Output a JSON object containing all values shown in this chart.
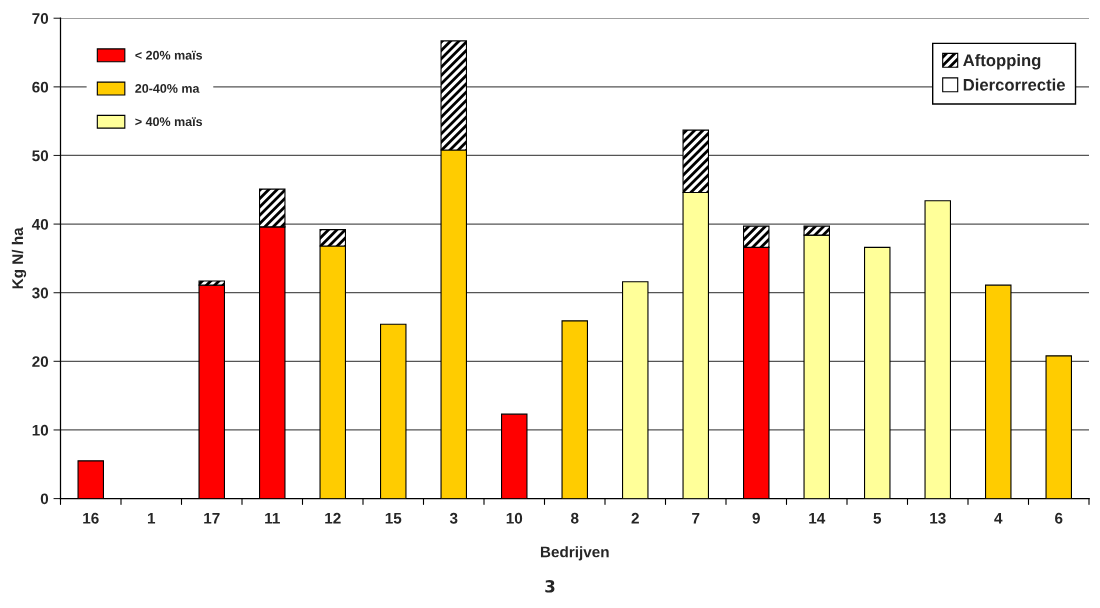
{
  "chart_data": {
    "type": "bar",
    "stacked": true,
    "categories": [
      "16",
      "1",
      "17",
      "11",
      "12",
      "15",
      "3",
      "10",
      "8",
      "2",
      "7",
      "9",
      "14",
      "5",
      "13",
      "4",
      "6"
    ],
    "series": [
      {
        "name": "> 40% maïs",
        "color": "#ffff99",
        "values": [
          null,
          null,
          null,
          null,
          null,
          null,
          null,
          null,
          null,
          31.6,
          44.6,
          null,
          38.4,
          36.6,
          43.4,
          null,
          null
        ]
      },
      {
        "name": "20-40% ma",
        "color": "#ffcc00",
        "values": [
          null,
          null,
          null,
          null,
          36.8,
          25.4,
          50.8,
          null,
          25.9,
          null,
          null,
          null,
          null,
          null,
          null,
          31.1,
          20.8
        ]
      },
      {
        "name": "< 20% maïs",
        "color": "#ff0000",
        "values": [
          5.5,
          null,
          31.1,
          39.6,
          null,
          null,
          null,
          12.3,
          null,
          null,
          null,
          36.6,
          null,
          null,
          null,
          null,
          null
        ]
      },
      {
        "name": "Diercorrectie",
        "color": "#ffffff",
        "values": [
          0,
          0,
          0,
          0,
          0,
          0,
          0,
          0,
          0,
          0,
          0,
          0,
          0,
          0,
          0,
          0,
          0
        ]
      },
      {
        "name": "Aftopping",
        "color": "#000000",
        "values": [
          null,
          null,
          0.6,
          5.5,
          2.4,
          null,
          15.9,
          null,
          null,
          null,
          9.1,
          3.1,
          1.3,
          null,
          null,
          null,
          null
        ]
      }
    ],
    "xlabel": "Bedrijven",
    "ylabel": "Kg N/ ha",
    "ylim": [
      0,
      70
    ],
    "yticks": [
      0,
      10,
      20,
      30,
      40,
      50,
      60,
      70
    ],
    "grid": "y",
    "legend": "top left",
    "annotations": [
      "3"
    ]
  }
}
